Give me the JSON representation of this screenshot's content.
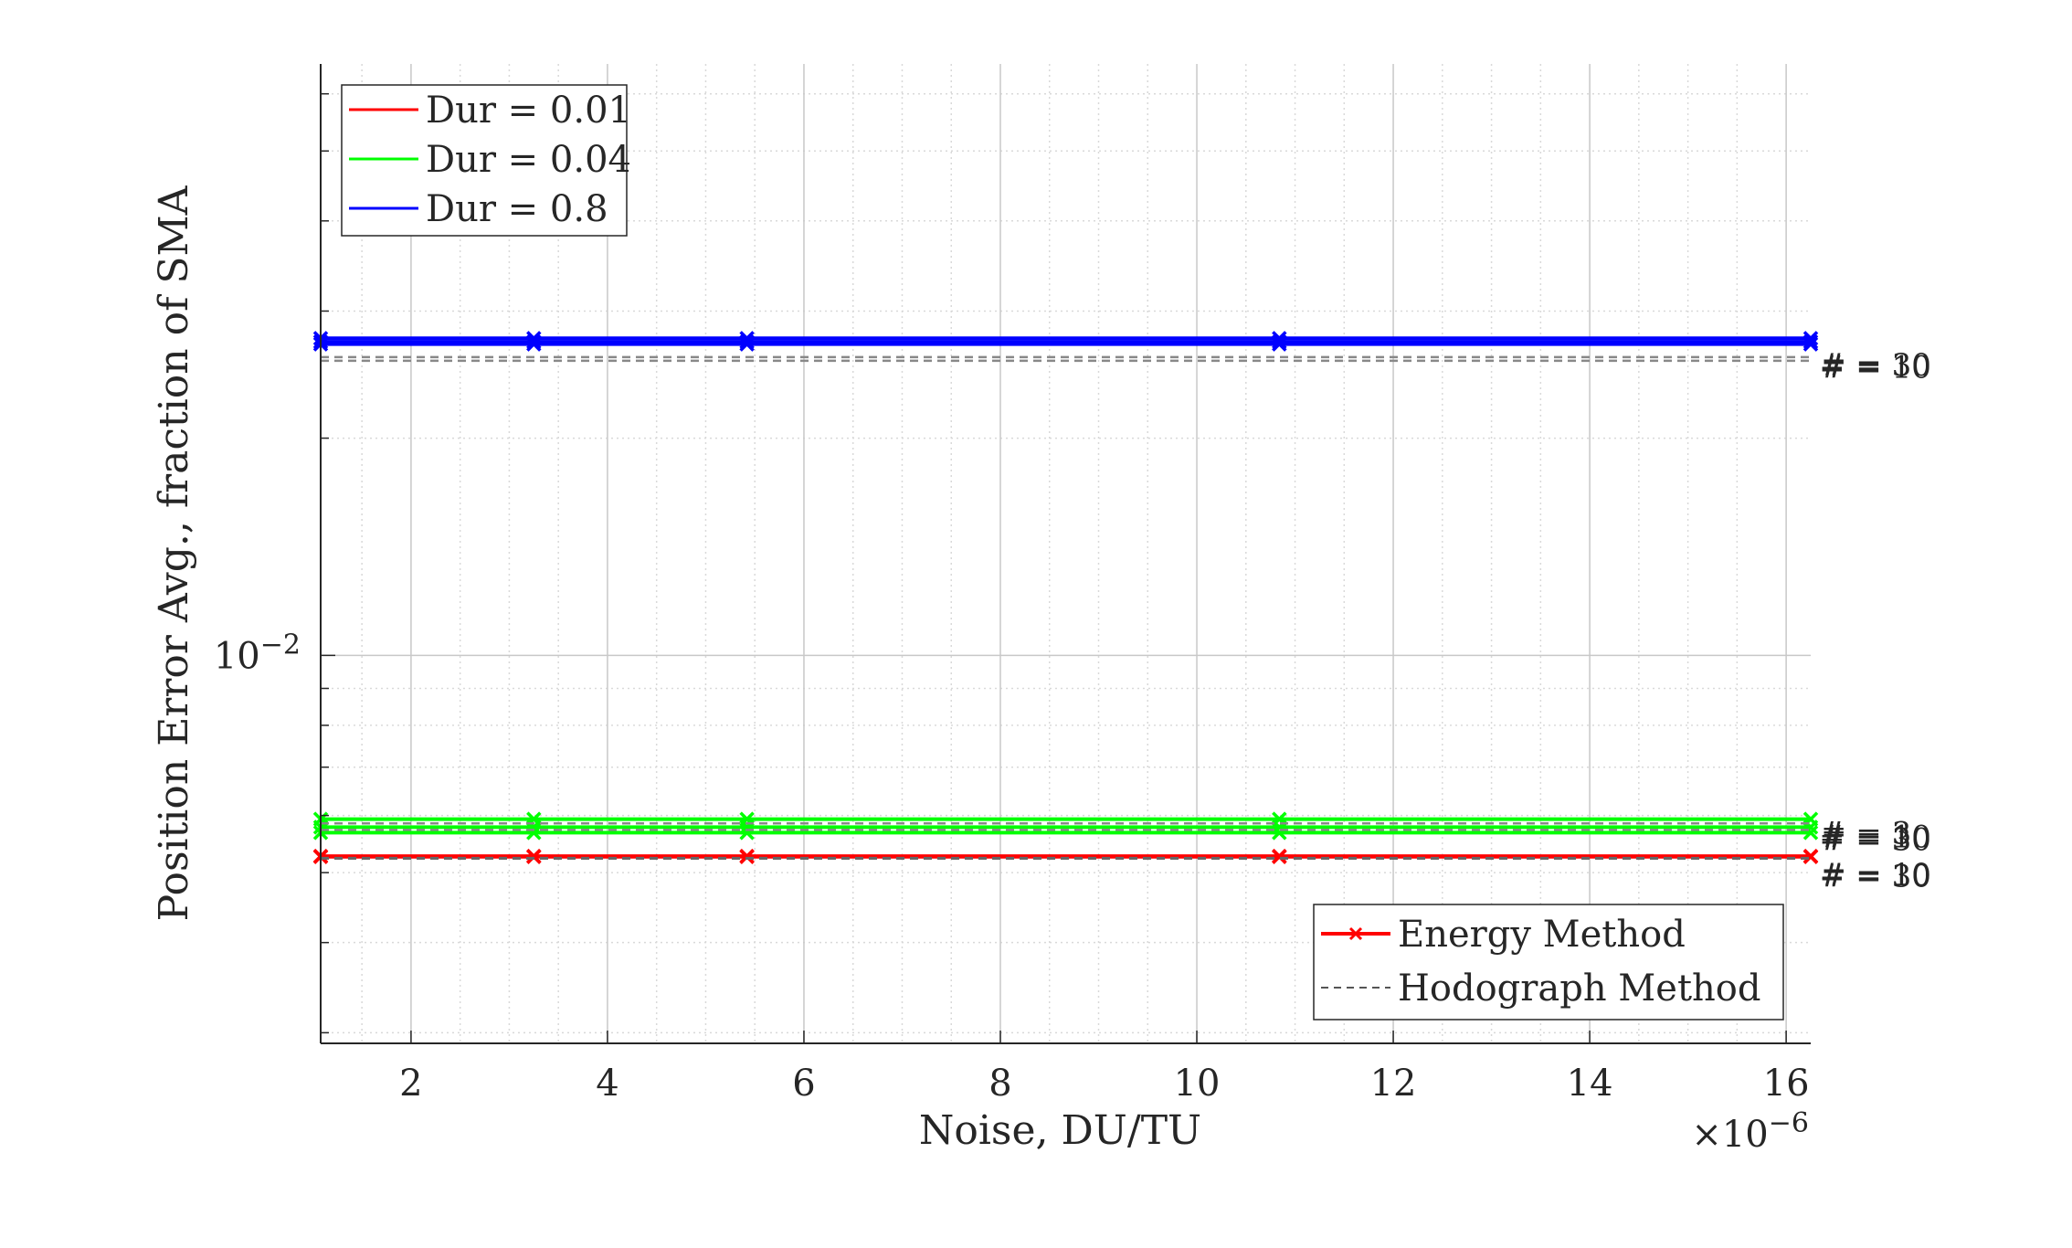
{
  "chart_data": {
    "type": "line",
    "title": "",
    "xlabel": "Noise, DU/TU",
    "ylabel": "Position Error Avg., fraction of SMA",
    "x_multiplier_label": "×10",
    "x_multiplier_exponent": "−6",
    "xscale": "linear",
    "yscale": "log",
    "xlim": [
      1.08e-06,
      1.625e-05
    ],
    "ylim": [
      0.0029,
      0.066
    ],
    "grid": true,
    "minor_grid": true,
    "x_ticks": [
      2e-06,
      4e-06,
      6e-06,
      8e-06,
      1e-05,
      1.2e-05,
      1.4e-05,
      1.6e-05
    ],
    "x_tick_labels": [
      "2",
      "4",
      "6",
      "8",
      "10",
      "12",
      "14",
      "16"
    ],
    "y_ticks": [
      0.01
    ],
    "y_tick_label_base": "10",
    "y_tick_label_exponent": "−2",
    "x": [
      1.08e-06,
      3.25e-06,
      5.42e-06,
      1.084e-05,
      1.625e-05
    ],
    "duration_legend": {
      "placement": "top-left",
      "entries": [
        {
          "label": "Dur = 0.01",
          "color": "#ff0000"
        },
        {
          "label": "Dur = 0.04",
          "color": "#00ff00"
        },
        {
          "label": "Dur = 0.8",
          "color": "#0000ff"
        }
      ]
    },
    "method_legend": {
      "placement": "bottom-right",
      "entries": [
        {
          "label": "Energy Method",
          "color": "#ff0000",
          "style": "solid-x-marker"
        },
        {
          "label": "Hodograph Method",
          "color": "#555555",
          "style": "dashed"
        }
      ]
    },
    "series": [
      {
        "method": "energy",
        "color": "#0000ff",
        "values": [
          0.0275,
          0.0275,
          0.0275,
          0.0275,
          0.0275
        ]
      },
      {
        "method": "energy",
        "color": "#0000ff",
        "values": [
          0.0272,
          0.0272,
          0.0272,
          0.0272,
          0.0272
        ]
      },
      {
        "method": "energy",
        "color": "#0000ff",
        "values": [
          0.027,
          0.027,
          0.027,
          0.027,
          0.027
        ]
      },
      {
        "method": "hodograph",
        "color": "#888888",
        "values": [
          0.0259,
          0.0259,
          0.0259,
          0.0259,
          0.0259
        ]
      },
      {
        "method": "hodograph",
        "color": "#888888",
        "values": [
          0.0256,
          0.0256,
          0.0256,
          0.0256,
          0.0256
        ]
      },
      {
        "method": "energy",
        "color": "#00ff00",
        "values": [
          0.00593,
          0.00593,
          0.00593,
          0.00593,
          0.00593
        ]
      },
      {
        "method": "energy",
        "color": "#00ff00",
        "values": [
          0.00578,
          0.00578,
          0.00578,
          0.00578,
          0.00578
        ]
      },
      {
        "method": "energy",
        "color": "#00ff00",
        "values": [
          0.00568,
          0.00568,
          0.00568,
          0.00568,
          0.00568
        ]
      },
      {
        "method": "hodograph",
        "color": "#888888",
        "values": [
          0.00585,
          0.00585,
          0.00585,
          0.00585,
          0.00585
        ]
      },
      {
        "method": "hodograph",
        "color": "#888888",
        "values": [
          0.00573,
          0.00573,
          0.00573,
          0.00573,
          0.00573
        ]
      },
      {
        "method": "energy",
        "color": "#ff0000",
        "values": [
          0.00527,
          0.00527,
          0.00527,
          0.00527,
          0.00527
        ]
      },
      {
        "method": "energy",
        "color": "#ff0000",
        "values": [
          0.00526,
          0.00526,
          0.00526,
          0.00526,
          0.00526
        ]
      },
      {
        "method": "hodograph",
        "color": "#666666",
        "values": [
          0.00524,
          0.00524,
          0.00524,
          0.00524,
          0.00524
        ]
      },
      {
        "method": "hodograph",
        "color": "#666666",
        "values": [
          0.00523,
          0.00523,
          0.00523,
          0.00523,
          0.00523
        ]
      }
    ],
    "count_labels": [
      {
        "text": "# = 30",
        "y": 0.0253
      },
      {
        "text": "# = 10",
        "y": 0.0251
      },
      {
        "text": "# = 3",
        "y": 0.00568
      },
      {
        "text": "# = 10",
        "y": 0.00561
      },
      {
        "text": "# = 30",
        "y": 0.00556
      },
      {
        "text": "# = 10",
        "y": 0.00497
      },
      {
        "text": "# = 30",
        "y": 0.00495
      }
    ]
  }
}
